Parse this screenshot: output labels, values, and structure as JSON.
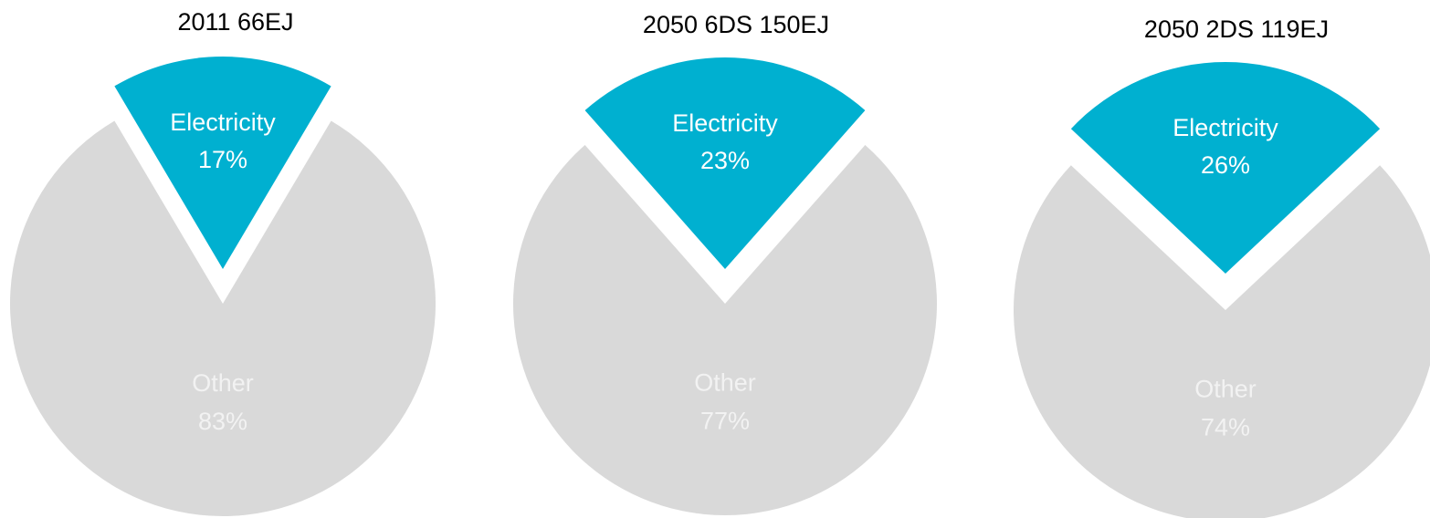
{
  "colors": {
    "electricity": "#00B0D0",
    "other": "#D9D9D9",
    "label_on_electricity": "#FFFFFF",
    "label_on_other": "#F2F2F2",
    "title": "#000000"
  },
  "chart_data": [
    {
      "type": "pie",
      "title": "2011 66EJ",
      "slices": [
        {
          "name": "Electricity",
          "value": 17,
          "label": "17%",
          "exploded": true
        },
        {
          "name": "Other",
          "value": 83,
          "label": "83%",
          "exploded": false
        }
      ]
    },
    {
      "type": "pie",
      "title": "2050 6DS 150EJ",
      "slices": [
        {
          "name": "Electricity",
          "value": 23,
          "label": "23%",
          "exploded": true
        },
        {
          "name": "Other",
          "value": 77,
          "label": "77%",
          "exploded": false
        }
      ]
    },
    {
      "type": "pie",
      "title": "2050 2DS 119EJ",
      "slices": [
        {
          "name": "Electricity",
          "value": 26,
          "label": "26%",
          "exploded": true
        },
        {
          "name": "Other",
          "value": 74,
          "label": "74%",
          "exploded": false
        }
      ]
    }
  ]
}
